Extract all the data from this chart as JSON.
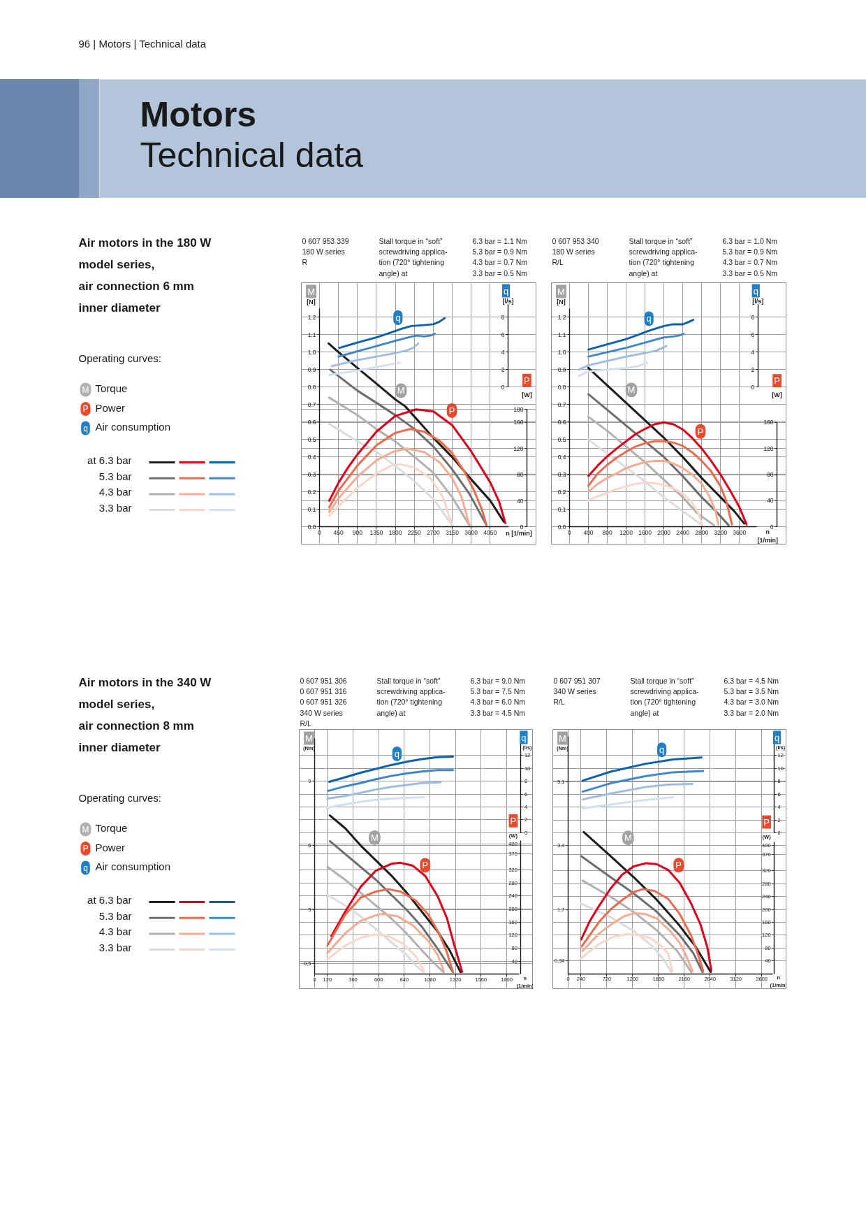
{
  "chart_data": [
    {
      "type": "other",
      "title": "Motors",
      "subtitle": "Technical data",
      "annotations": [
        "96 | Motors | Technical data"
      ]
    },
    {
      "type": "other",
      "title": "Air motors in the 180 W\nmodel series,\nair connection 6 mm\ninner diameter",
      "annotations": [
        "Operating curves:",
        "M",
        "Torque",
        "P",
        "Power",
        "q",
        "Air consumption"
      ]
    },
    {
      "type": "line",
      "title": "0 607 953 339\n180 W series\nR",
      "annotations": [
        "Stall torque in “soft”\nscrewdriving applica-\ntion (720° tightening\nangle) at",
        "6.3 bar = 1.1 Nm\n5.3 bar = 0.9 Nm\n4.3 bar = 0.7 Nm\n3.3 bar = 0.5 Nm",
        {
          "text": "q",
          "x": 1663,
          "y": 1.11
        },
        {
          "text": "M",
          "x": 1850,
          "y": 0.72
        },
        {
          "text": "P",
          "x": 3010,
          "y": 0.61
        }
      ],
      "xlabel": "n [1/min]",
      "ylabel": "M\n[N]",
      "y2label": "q\n[l/s]",
      "y3label": "P\n[W]",
      "xlim": [
        0,
        4500
      ],
      "xticks": [
        0,
        450,
        900,
        1350,
        1800,
        2250,
        2700,
        3150,
        3600,
        4050
      ],
      "ylim": [
        0,
        1.25
      ],
      "yticks": [
        {
          "value": 0,
          "label": "0.0"
        },
        0.1,
        0.2,
        0.3,
        0.4,
        0.5,
        0.6,
        0.7,
        0.8,
        0.9,
        {
          "value": 1,
          "label": "1.0"
        },
        1.1,
        1.2
      ],
      "y2lim": [
        0,
        9.5
      ],
      "y2ticks": [
        0,
        2,
        4,
        6,
        8
      ],
      "y3lim": [
        0,
        180
      ],
      "y3ticks": [
        0,
        40,
        80,
        120,
        160,
        180
      ],
      "grid": true,
      "legend": "left",
      "series": [
        {
          "name": "at 6.3 bar",
          "color": "#1d1d1b",
          "x": [
            215,
            453,
            899,
            1352,
            1797,
            2035,
            2258,
            2703,
            3149,
            3609,
            4055,
            4374
          ],
          "values": [
            1.05,
            1.0,
            0.91,
            0.82,
            0.73,
            0.69,
            0.63,
            0.51,
            0.4,
            0.27,
            0.15,
            0.03
          ]
        },
        {
          "name": "5.3 bar",
          "color": "#6e6e6e",
          "x": [
            252,
            899,
            1352,
            1797,
            2258,
            2703,
            3149,
            3557,
            3965
          ],
          "values": [
            0.9,
            0.78,
            0.71,
            0.64,
            0.56,
            0.46,
            0.33,
            0.19,
            0.01
          ]
        },
        {
          "name": "4.3 bar",
          "color": "#b1b1b1",
          "x": [
            230,
            899,
            1352,
            1797,
            2258,
            2703,
            3149,
            3557
          ],
          "values": [
            0.74,
            0.64,
            0.56,
            0.49,
            0.4,
            0.31,
            0.17,
            0.01
          ]
        },
        {
          "name": "3.3 bar",
          "color": "#dcdcdc",
          "x": [
            230,
            899,
            1352,
            1797,
            2258,
            2703,
            3149
          ],
          "values": [
            0.59,
            0.49,
            0.43,
            0.35,
            0.26,
            0.16,
            0.01
          ]
        },
        {
          "color": "#e2001a",
          "axis": "y3",
          "x": [
            230,
            453,
            676,
            899,
            1352,
            1797,
            2295,
            2703,
            3149,
            3609,
            4055,
            4263,
            4411
          ],
          "values": [
            40,
            68,
            91,
            111,
            146,
            170,
            180,
            177,
            156,
            115,
            68,
            39,
            6
          ]
        },
        {
          "color": "#ef6a4c",
          "axis": "y3",
          "x": [
            230,
            453,
            899,
            1352,
            1797,
            2146,
            2480,
            2852,
            3149,
            3446,
            3668,
            3854,
            3965
          ],
          "values": [
            30,
            56,
            94,
            125,
            144,
            150,
            146,
            132,
            113,
            84,
            56,
            27,
            3
          ]
        },
        {
          "color": "#f6ab92",
          "axis": "y3",
          "x": [
            230,
            453,
            899,
            1352,
            1738,
            2072,
            2480,
            2852,
            3149,
            3371,
            3557
          ],
          "values": [
            23,
            44,
            77,
            102,
            115,
            120,
            115,
            99,
            75,
            46,
            3
          ]
        },
        {
          "color": "#fbd6c8",
          "axis": "y3",
          "x": [
            230,
            453,
            899,
            1352,
            1738,
            1923,
            2258,
            2629,
            2926,
            3149
          ],
          "values": [
            17,
            32,
            60,
            82,
            95,
            96,
            91,
            75,
            46,
            3
          ]
        },
        {
          "color": "#0b62ae",
          "axis": "y2",
          "x": [
            475,
            899,
            1352,
            1663,
            1960,
            2183,
            2480,
            2703,
            2852,
            2970
          ],
          "values": [
            4.5,
            5.1,
            5.7,
            6.2,
            6.7,
            7.0,
            7.1,
            7.2,
            7.5,
            7.9
          ]
        },
        {
          "color": "#3f87cd",
          "axis": "y2",
          "x": [
            453,
            899,
            1352,
            1797,
            2109,
            2295,
            2480,
            2629,
            2740
          ],
          "values": [
            3.5,
            4.1,
            4.7,
            5.3,
            5.7,
            5.9,
            5.8,
            5.9,
            6.1
          ]
        },
        {
          "color": "#9dbce6",
          "axis": "y2",
          "x": [
            290,
            899,
            1352,
            1797,
            2072,
            2220,
            2347
          ],
          "values": [
            2.4,
            3.1,
            3.5,
            3.9,
            4.2,
            4.5,
            5.0
          ]
        },
        {
          "color": "#d0dff3",
          "axis": "y2",
          "x": [
            230,
            899,
            1352,
            1901
          ],
          "values": [
            1.4,
            1.9,
            2.3,
            2.8
          ]
        }
      ]
    },
    {
      "type": "line",
      "title": "0 607 953 340\n180 W series\nR/L",
      "annotations": [
        "Stall torque in “soft”\nscrewdriving applica-\ntion (720° tightening\nangle) at",
        "6.3 bar = 1.0 Nm\n5.3 bar = 0.9 Nm\n4.3 bar = 0.7 Nm\n3.3 bar = 0.5 Nm",
        {
          "text": "q",
          "x": 1460,
          "y": 1.1
        },
        {
          "text": "M",
          "x": 1310,
          "y": 0.68
        },
        {
          "text": "P",
          "x": 2715,
          "y": 0.475
        }
      ],
      "xlabel": "n\n[1/min]",
      "ylabel": "M\n[N]",
      "y2label": "q\n[l/s]",
      "y3label": "P\n[W]",
      "xlim": [
        0,
        3960
      ],
      "xticks": [
        0,
        400,
        800,
        1200,
        1600,
        2000,
        2400,
        2800,
        3200,
        3600
      ],
      "ylim": [
        0,
        1.25
      ],
      "yticks": [
        {
          "value": 0,
          "label": "0.0"
        },
        0.1,
        0.2,
        0.3,
        0.4,
        0.5,
        0.6,
        0.7,
        0.8,
        0.9,
        {
          "value": 1,
          "label": "1.0"
        },
        1.1,
        1.2
      ],
      "y2lim": [
        0,
        9.5
      ],
      "y2ticks": [
        0,
        2,
        4,
        6,
        8
      ],
      "y3lim": [
        0,
        160
      ],
      "y3ticks": [
        0,
        40,
        80,
        120,
        160
      ],
      "grid": true,
      "series": [
        {
          "color": "#1d1d1b",
          "x": [
            400,
            800,
            1200,
            1600,
            2000,
            2400,
            2800,
            3200,
            3490,
            3700
          ],
          "values": [
            0.91,
            0.81,
            0.71,
            0.61,
            0.51,
            0.4,
            0.28,
            0.17,
            0.09,
            0.02
          ]
        },
        {
          "color": "#6e6e6e",
          "x": [
            400,
            800,
            1200,
            1600,
            2000,
            2400,
            2800,
            3100,
            3370
          ],
          "values": [
            0.76,
            0.67,
            0.58,
            0.49,
            0.4,
            0.29,
            0.17,
            0.09,
            0.01
          ]
        },
        {
          "color": "#b1b1b1",
          "x": [
            400,
            800,
            1200,
            1600,
            2000,
            2400,
            2700,
            3060
          ],
          "values": [
            0.63,
            0.55,
            0.46,
            0.37,
            0.27,
            0.17,
            0.08,
            0.01
          ]
        },
        {
          "color": "#dcdcdc",
          "x": [
            400,
            800,
            1200,
            1600,
            2000,
            2400,
            2810
          ],
          "values": [
            0.5,
            0.42,
            0.34,
            0.26,
            0.17,
            0.09,
            0.01
          ]
        },
        {
          "color": "#e2001a",
          "axis": "y3",
          "x": [
            400,
            600,
            800,
            1000,
            1200,
            1400,
            1600,
            1800,
            2000,
            2200,
            2400,
            2600,
            2800,
            3000,
            3200,
            3400,
            3600,
            3750
          ],
          "values": [
            78,
            94,
            108,
            120,
            131,
            142,
            150,
            157,
            160,
            157,
            149,
            136,
            120,
            101,
            80,
            56,
            30,
            4
          ]
        },
        {
          "color": "#ef6a4c",
          "axis": "y3",
          "x": [
            400,
            600,
            800,
            1000,
            1200,
            1400,
            1600,
            1800,
            2000,
            2200,
            2400,
            2600,
            2800,
            3000,
            3200,
            3320,
            3440
          ],
          "values": [
            63,
            82,
            95,
            106,
            115,
            123,
            128,
            131,
            131,
            129,
            124,
            114,
            101,
            85,
            62,
            40,
            4
          ]
        },
        {
          "color": "#f6ab92",
          "axis": "y3",
          "x": [
            400,
            600,
            800,
            1000,
            1200,
            1400,
            1600,
            1800,
            2000,
            2200,
            2400,
            2600,
            2800,
            2960,
            3100,
            3150
          ],
          "values": [
            54,
            66,
            75,
            82,
            90,
            95,
            99,
            101,
            101,
            97,
            90,
            80,
            66,
            47,
            23,
            4
          ]
        },
        {
          "color": "#fbd6c8",
          "axis": "y3",
          "x": [
            400,
            600,
            800,
            1000,
            1200,
            1400,
            1600,
            1800,
            2000,
            2200,
            2400,
            2600,
            2730,
            2810
          ],
          "values": [
            41,
            47,
            52,
            58,
            62,
            66,
            68,
            67,
            64,
            59,
            51,
            37,
            21,
            4
          ]
        },
        {
          "color": "#0b62ae",
          "axis": "y2",
          "x": [
            400,
            800,
            1200,
            1460,
            1650,
            2000,
            2200,
            2400,
            2500,
            2620
          ],
          "values": [
            4.3,
            4.9,
            5.5,
            6.0,
            6.4,
            7.0,
            7.2,
            7.2,
            7.4,
            7.7
          ]
        },
        {
          "color": "#3f87cd",
          "axis": "y2",
          "x": [
            400,
            800,
            1200,
            1600,
            2000,
            2200,
            2310,
            2420
          ],
          "values": [
            3.5,
            4.0,
            4.5,
            5.1,
            5.7,
            5.8,
            5.9,
            6.1
          ]
        },
        {
          "color": "#9dbce6",
          "axis": "y2",
          "x": [
            200,
            400,
            800,
            1200,
            1600,
            1850,
            2050
          ],
          "values": [
            2.0,
            2.5,
            3.0,
            3.5,
            3.9,
            4.2,
            4.7
          ]
        },
        {
          "color": "#d0dff3",
          "axis": "y2",
          "x": [
            200,
            400,
            800,
            1200,
            1460,
            1650
          ],
          "values": [
            1.3,
            1.8,
            2.0,
            2.2,
            2.4,
            2.8
          ]
        }
      ]
    },
    {
      "type": "other",
      "title": "Air motors in the 340 W\nmodel series,\nair connection 8 mm\ninner diameter",
      "annotations": [
        "Operating curves:",
        "M",
        "Torque",
        "P",
        "Power",
        "q",
        "Air consumption"
      ]
    },
    {
      "type": "line",
      "title": "0 607 951 306\n0 607 951 316\n0 607 951 326\n340 W series\nR/L",
      "annotations": [
        "Stall torque in “soft”\nscrewdriving applica-\ntion (720° tightening\nangle) at",
        "6.3 bar = 9.0 Nm\n5.3 bar = 7.5 Nm\n4.3 bar = 6.0 Nm\n3.3 bar = 4.5 Nm",
        {
          "text": "q",
          "x": 719,
          "y": 9.75
        },
        {
          "text": "M",
          "x": 431,
          "y": 6.0
        },
        {
          "text": "P",
          "x": 1036,
          "y": 4.59
        }
      ],
      "xlabel": "n\n(1/min)",
      "ylabel": "M\n(Nm)",
      "y2label": "q\n(l/s)",
      "y3label": "P\n(W)",
      "xlim": [
        0,
        1920
      ],
      "xticks": [
        0,
        120,
        360,
        600,
        840,
        1080,
        1320,
        1560,
        1800
      ],
      "ylim": [
        0,
        11
      ],
      "yticks": [
        {
          "value": 0.5,
          "label": "0,5"
        },
        3,
        6,
        9
      ],
      "y2lim": [
        0,
        14.8
      ],
      "y2ticks": [
        0,
        2,
        4,
        6,
        8,
        10,
        12
      ],
      "y3lim": [
        0,
        410
      ],
      "y3ticks": [
        40,
        80,
        120,
        160,
        200,
        240,
        280,
        320,
        370,
        400
      ],
      "grid": true,
      "legend": "left",
      "series": [
        {
          "name": "at 6.3 bar",
          "color": "#1d1d1b",
          "x": [
            143,
            287,
            431,
            575,
            719,
            863,
            1007,
            1152,
            1267,
            1368
          ],
          "values": [
            7.4,
            6.8,
            6.0,
            5.3,
            4.6,
            3.8,
            2.9,
            2.0,
            1.1,
            0.1
          ]
        },
        {
          "name": "5.3 bar",
          "color": "#6e6e6e",
          "x": [
            143,
            287,
            431,
            575,
            719,
            863,
            1007,
            1152,
            1296
          ],
          "values": [
            6.2,
            5.6,
            5.0,
            4.4,
            3.7,
            3.0,
            2.2,
            1.2,
            0.1
          ]
        },
        {
          "name": "4.3 bar",
          "color": "#b1b1b1",
          "x": [
            120,
            287,
            431,
            575,
            719,
            863,
            1007,
            1123,
            1209
          ],
          "values": [
            5.0,
            4.4,
            3.8,
            3.2,
            2.6,
            1.9,
            1.1,
            0.5,
            0.1
          ]
        },
        {
          "name": "3.3 bar",
          "color": "#dcdcdc",
          "x": [
            120,
            287,
            431,
            575,
            719,
            863,
            950,
            1022
          ],
          "values": [
            3.7,
            3.2,
            2.7,
            2.1,
            1.5,
            0.9,
            0.4,
            0.1
          ]
        },
        {
          "color": "#e2001a",
          "axis": "y3",
          "x": [
            157,
            287,
            431,
            575,
            719,
            805,
            921,
            1036,
            1152,
            1238,
            1310,
            1382
          ],
          "values": [
            117,
            192,
            268,
            318,
            339,
            342,
            333,
            302,
            240,
            174,
            88,
            8
          ]
        },
        {
          "color": "#ef6a4c",
          "axis": "y3",
          "x": [
            120,
            287,
            431,
            575,
            690,
            805,
            949,
            1065,
            1165,
            1238,
            1296
          ],
          "values": [
            88,
            183,
            235,
            254,
            261,
            254,
            226,
            183,
            126,
            69,
            8
          ]
        },
        {
          "color": "#f6ab92",
          "axis": "y3",
          "x": [
            120,
            287,
            431,
            575,
            632,
            777,
            921,
            1065,
            1152,
            1209
          ],
          "values": [
            65,
            126,
            164,
            181,
            185,
            178,
            150,
            102,
            60,
            12
          ]
        },
        {
          "color": "#fbd6c8",
          "axis": "y3",
          "x": [
            120,
            287,
            431,
            560,
            690,
            834,
            949,
            1022
          ],
          "values": [
            46,
            88,
            112,
            122,
            117,
            93,
            55,
            12
          ]
        },
        {
          "color": "#0b62ae",
          "axis": "y2",
          "x": [
            137,
            287,
            431,
            575,
            719,
            863,
            1007,
            1152,
            1296
          ],
          "values": [
            7.9,
            8.6,
            9.3,
            9.9,
            10.5,
            11.0,
            11.4,
            11.7,
            11.8
          ]
        },
        {
          "color": "#3f87cd",
          "axis": "y2",
          "x": [
            129,
            287,
            431,
            575,
            719,
            863,
            1007,
            1152,
            1296
          ],
          "values": [
            6.5,
            7.2,
            7.7,
            8.3,
            8.8,
            9.2,
            9.5,
            9.7,
            9.7
          ]
        },
        {
          "color": "#9dbce6",
          "axis": "y2",
          "x": [
            120,
            287,
            431,
            575,
            719,
            863,
            1007,
            1181
          ],
          "values": [
            5.3,
            5.7,
            6.2,
            6.7,
            7.1,
            7.4,
            7.7,
            7.8
          ]
        },
        {
          "color": "#d0dff3",
          "axis": "y2",
          "x": [
            120,
            287,
            431,
            575,
            719,
            863,
            1022
          ],
          "values": [
            3.9,
            4.4,
            4.8,
            5.1,
            5.3,
            5.4,
            5.5
          ]
        }
      ]
    },
    {
      "type": "line",
      "title": "0 607 951 307\n340 W series\nR/L",
      "annotations": [
        "Stall torque in “soft”\nscrewdriving applica-\ntion (720° tightening\nangle) at",
        "6.3 bar = 4.5 Nm\n5.3 bar = 3.5 Nm\n4.3 bar = 3.0 Nm\n3.3 bar = 2.0 Nm",
        {
          "text": "q",
          "x": 1430,
          "y": 5.57
        },
        {
          "text": "M",
          "x": 790,
          "y": 3.12
        },
        {
          "text": "P",
          "x": 1860,
          "y": 2.75
        }
      ],
      "xlabel": "n\n(1/min)",
      "ylabel": "M\n(Nm)",
      "y2label": "q\n(l/s)",
      "y3label": "P\n(W)",
      "xlim": [
        0,
        3810
      ],
      "xticks": [
        0,
        240,
        720,
        1200,
        1680,
        2160,
        2640,
        3120,
        3600
      ],
      "ylim": [
        0,
        6.3
      ],
      "yticks": [
        {
          "value": 0.34,
          "label": "0,34"
        },
        {
          "value": 1.7,
          "label": "1,7"
        },
        {
          "value": 3.4,
          "label": "3,4"
        },
        {
          "value": 5.1,
          "label": "5,1"
        }
      ],
      "y2lim": [
        0,
        14.8
      ],
      "y2ticks": [
        0,
        2,
        4,
        6,
        8,
        10,
        12
      ],
      "y3lim": [
        0,
        410
      ],
      "y3ticks": [
        40,
        80,
        120,
        160,
        200,
        240,
        280,
        320,
        370,
        400
      ],
      "grid": true,
      "series": [
        {
          "color": "#1d1d1b",
          "x": [
            290,
            790,
            1220,
            1650,
            2070,
            2370,
            2650
          ],
          "values": [
            3.76,
            3.12,
            2.56,
            1.96,
            1.28,
            0.72,
            0.05
          ]
        },
        {
          "color": "#6e6e6e",
          "x": [
            240,
            790,
            1220,
            1650,
            2070,
            2330,
            2500
          ],
          "values": [
            3.12,
            2.56,
            2.13,
            1.64,
            1.03,
            0.54,
            0.04
          ]
        },
        {
          "color": "#b1b1b1",
          "x": [
            270,
            790,
            1220,
            1650,
            2030,
            2290
          ],
          "values": [
            2.47,
            2.04,
            1.64,
            1.15,
            0.6,
            0.04
          ]
        },
        {
          "color": "#dcdcdc",
          "x": [
            240,
            790,
            1220,
            1560,
            1770,
            1920
          ],
          "values": [
            1.86,
            1.5,
            1.13,
            0.74,
            0.39,
            0.04
          ]
        },
        {
          "color": "#e2001a",
          "axis": "y3",
          "x": [
            244,
            403,
            574,
            789,
            1003,
            1217,
            1453,
            1646,
            1860,
            2074,
            2289,
            2460,
            2589,
            2662
          ],
          "values": [
            107,
            164,
            211,
            265,
            308,
            334,
            344,
            341,
            323,
            283,
            218,
            154,
            82,
            10
          ]
        },
        {
          "color": "#ef6a4c",
          "axis": "y3",
          "x": [
            253,
            574,
            789,
            1003,
            1217,
            1389,
            1603,
            1860,
            2074,
            2289,
            2417,
            2512
          ],
          "values": [
            85,
            161,
            200,
            229,
            254,
            263,
            258,
            233,
            186,
            118,
            60,
            8
          ]
        },
        {
          "color": "#f6ab92",
          "axis": "y3",
          "x": [
            266,
            574,
            831,
            1046,
            1217,
            1432,
            1646,
            1903,
            2074,
            2203,
            2310
          ],
          "values": [
            71,
            125,
            157,
            179,
            188,
            186,
            172,
            132,
            96,
            53,
            8
          ]
        },
        {
          "color": "#fbd6c8",
          "axis": "y3",
          "x": [
            231,
            574,
            831,
            1089,
            1303,
            1517,
            1689,
            1860,
            1937
          ],
          "values": [
            47,
            93,
            114,
            123,
            121,
            111,
            93,
            64,
            8
          ]
        },
        {
          "color": "#0b62ae",
          "axis": "y2",
          "x": [
            270,
            790,
            1430,
            1950,
            2480
          ],
          "values": [
            8.1,
            9.5,
            10.7,
            11.4,
            11.7
          ]
        },
        {
          "color": "#3f87cd",
          "axis": "y2",
          "x": [
            270,
            790,
            1430,
            1950,
            2510
          ],
          "values": [
            6.4,
            7.7,
            8.8,
            9.4,
            9.6
          ]
        },
        {
          "color": "#9dbce6",
          "axis": "y2",
          "x": [
            270,
            790,
            1430,
            1860,
            2310
          ],
          "values": [
            5.2,
            6.1,
            7.1,
            7.5,
            7.6
          ]
        },
        {
          "color": "#d0dff3",
          "axis": "y2",
          "x": [
            270,
            790,
            1430,
            1950
          ],
          "values": [
            3.8,
            4.4,
            5.1,
            5.5
          ]
        }
      ]
    }
  ]
}
